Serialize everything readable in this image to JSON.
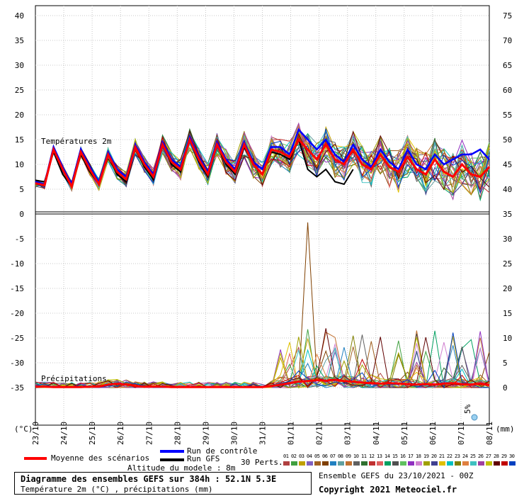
{
  "chart_data": {
    "type": "line",
    "left_axis_labels": [
      "40",
      "35",
      "30",
      "25",
      "20",
      "15",
      "10",
      "5",
      "0",
      "-5",
      "-10",
      "-15",
      "-20",
      "-25",
      "-30",
      "-35"
    ],
    "right_axis_labels": [
      "75",
      "70",
      "65",
      "60",
      "55",
      "50",
      "45",
      "40",
      "35",
      "30",
      "25",
      "20",
      "15",
      "10",
      "5",
      "0"
    ],
    "left_unit": "(°C)",
    "right_unit": "(mm)",
    "dates": [
      "23/10",
      "24/10",
      "25/10",
      "26/10",
      "27/10",
      "28/10",
      "29/10",
      "30/10",
      "31/10",
      "01/11",
      "02/11",
      "03/11",
      "04/11",
      "05/11",
      "06/11",
      "07/11",
      "08/11"
    ],
    "temp_section_label": "Températures 2m",
    "precip_section_label": "Précipitations",
    "snow_label": "5%",
    "mean_temperature": [
      6.2,
      5.8,
      13.0,
      9.0,
      5.5,
      12.5,
      9.0,
      6.0,
      12.0,
      8.5,
      7.0,
      13.5,
      10.0,
      7.5,
      14.0,
      10.5,
      9.0,
      15.0,
      11.0,
      8.0,
      14.0,
      10.5,
      8.5,
      14.0,
      10.0,
      8.0,
      13.0,
      12.5,
      11.5,
      15.0,
      13.0,
      11.0,
      14.0,
      11.0,
      10.0,
      13.0,
      10.0,
      9.0,
      12.0,
      9.5,
      8.5,
      11.5,
      9.0,
      8.0,
      11.0,
      8.5,
      7.5,
      10.0,
      8.0,
      7.5,
      9.5
    ],
    "control_temperature": [
      6.5,
      6.0,
      13.5,
      9.5,
      6.0,
      13.0,
      9.5,
      6.5,
      12.5,
      9.0,
      7.5,
      14.0,
      10.5,
      8.0,
      14.5,
      11.0,
      9.5,
      15.5,
      11.5,
      8.5,
      14.5,
      11.0,
      9.0,
      14.5,
      10.5,
      9.0,
      13.5,
      13.5,
      12.0,
      17.0,
      15.0,
      13.0,
      15.0,
      12.0,
      10.5,
      14.0,
      11.0,
      9.5,
      13.0,
      10.5,
      9.0,
      13.0,
      10.0,
      9.0,
      12.0,
      10.0,
      11.0,
      12.0,
      12.0,
      13.0,
      11.0
    ],
    "gfs_temperature": [
      6.8,
      6.5,
      12.5,
      8.0,
      5.5,
      12.0,
      8.5,
      6.0,
      12.0,
      8.0,
      6.5,
      13.5,
      9.5,
      7.0,
      14.0,
      10.0,
      8.5,
      15.0,
      10.5,
      7.5,
      14.0,
      10.0,
      8.0,
      13.5,
      10.0,
      8.0,
      12.5,
      12.0,
      11.0,
      15.0,
      9.0,
      7.5,
      9.0,
      6.5,
      6.0,
      9.0
    ],
    "member_temperature_spread": 2.6,
    "mean_precipitation": [
      0.2,
      0.2,
      0.1,
      0.1,
      0.1,
      0.1,
      0.2,
      0.2,
      0.6,
      0.8,
      0.6,
      0.3,
      0.2,
      0.2,
      0.2,
      0.1,
      0.1,
      0.1,
      0.1,
      0.1,
      0.1,
      0.1,
      0.1,
      0.1,
      0.1,
      0.1,
      0.3,
      0.6,
      0.9,
      1.2,
      1.3,
      1.5,
      1.4,
      1.6,
      1.3,
      1.2,
      1.0,
      0.9,
      0.8,
      0.9,
      0.8,
      0.7,
      0.6,
      0.7,
      0.6,
      0.8,
      0.9,
      0.7,
      0.6,
      0.8,
      0.5
    ],
    "precip_peak_mm": 33.3
  },
  "legend": {
    "mean_label": "Moyenne des scénarios",
    "mean_color": "#ff0000",
    "control_label": "Run de contrôle",
    "control_color": "#0000ff",
    "gfs_label": "Run GFS",
    "gfs_color": "#000000",
    "altitude_label": "Altitude du modele : 8m",
    "perts_label": "30 Perts.",
    "pert_numbers": [
      "01",
      "02",
      "03",
      "04",
      "05",
      "06",
      "07",
      "08",
      "09",
      "10",
      "11",
      "12",
      "13",
      "14",
      "15",
      "16",
      "17",
      "18",
      "19",
      "20",
      "21",
      "22",
      "23",
      "24",
      "25",
      "26",
      "27",
      "28",
      "29",
      "30"
    ],
    "pert_colors": [
      "#b04040",
      "#40a040",
      "#c0a000",
      "#8060c0",
      "#a06020",
      "#804000",
      "#2080c0",
      "#60a0a0",
      "#c07030",
      "#606060",
      "#307030",
      "#c03030",
      "#e06060",
      "#00a060",
      "#505050",
      "#60c060",
      "#9030c0",
      "#d080d0",
      "#a0a000",
      "#404090",
      "#e0c000",
      "#00c0c0",
      "#808000",
      "#e08040",
      "#40c0c0",
      "#a040a0",
      "#c0c000",
      "#600000",
      "#c00000",
      "#0040c0"
    ]
  },
  "footer": {
    "title": "Diagramme des ensembles GEFS sur 384h : 52.1N 5.3E",
    "subtitle": "Température 2m (°C) , précipitations (mm)",
    "run_info": "Ensemble GEFS du 23/10/2021 - 00Z",
    "copyright": "Copyright 2021 Meteociel.fr"
  }
}
